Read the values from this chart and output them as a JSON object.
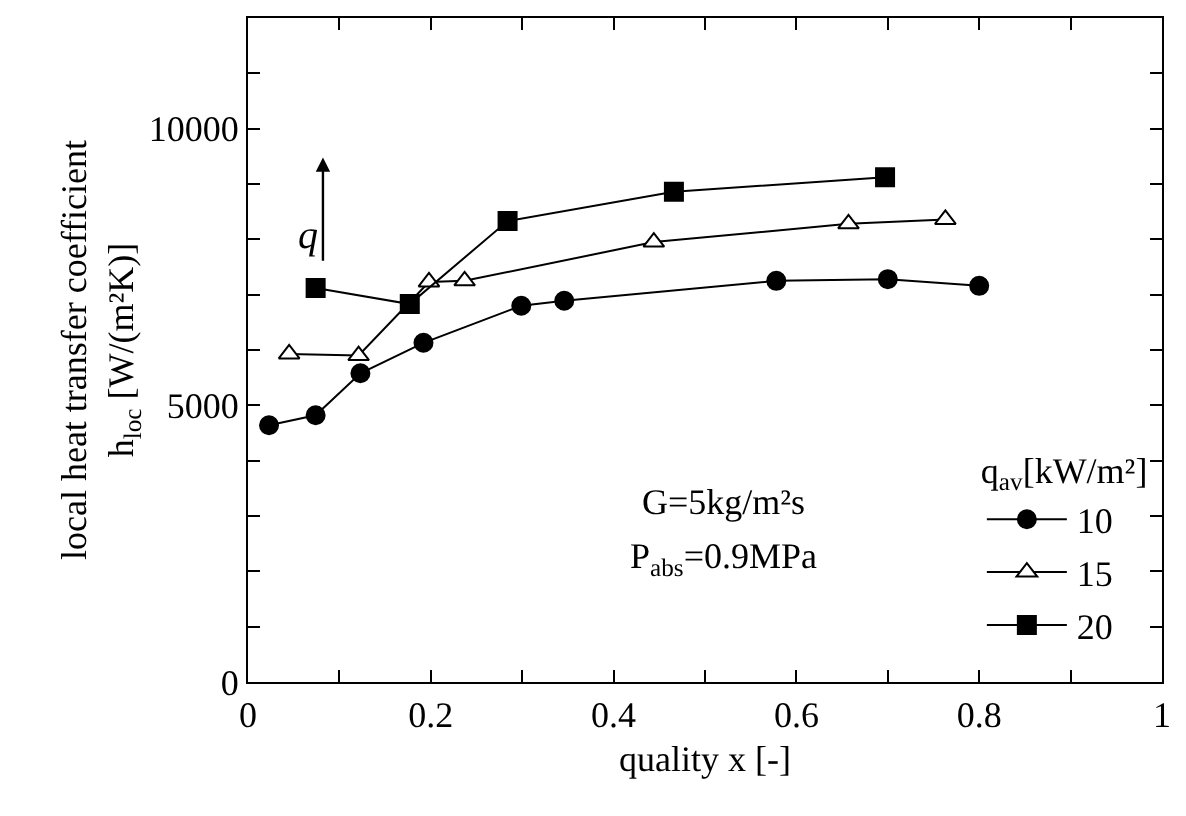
{
  "chart_data": {
    "type": "line",
    "xlabel": "quality x [-]",
    "ylabel": "local heat transfer coefficient\nh$_{loc}$ [W/(m²K)]",
    "legend_title": "q$_{av}$[kW/m²]",
    "xlim": [
      0,
      1
    ],
    "ylim": [
      0,
      12000
    ],
    "xticks": [
      0,
      {
        "value": 0.1,
        "label": null
      },
      0.2,
      {
        "value": 0.3,
        "label": null
      },
      0.4,
      {
        "value": 0.5,
        "label": null
      },
      0.6,
      {
        "value": 0.7,
        "label": null
      },
      0.8,
      {
        "value": 0.9,
        "label": null
      },
      1
    ],
    "yticks": [
      0,
      {
        "value": 1000,
        "label": null
      },
      {
        "value": 2000,
        "label": null
      },
      {
        "value": 3000,
        "label": null
      },
      {
        "value": 4000,
        "label": null
      },
      5000,
      {
        "value": 6000,
        "label": null
      },
      {
        "value": 7000,
        "label": null
      },
      {
        "value": 8000,
        "label": null
      },
      {
        "value": 9000,
        "label": null
      },
      10000,
      {
        "value": 11000,
        "label": null
      },
      {
        "value": 12000,
        "label": null
      }
    ],
    "grid": false,
    "legend": "bottom right",
    "line_style": "solid",
    "series": [
      {
        "name": "10",
        "color": "#000000",
        "marker": "circle",
        "x": [
          0.023,
          0.074,
          0.123,
          0.192,
          0.299,
          0.346,
          0.578,
          0.7,
          0.8
        ],
        "values": [
          4640,
          4820,
          5580,
          6130,
          6800,
          6890,
          7250,
          7280,
          7160
        ]
      },
      {
        "name": "15",
        "color": "#000000",
        "marker": "triangle",
        "x": [
          0.045,
          0.121,
          0.198,
          0.237,
          0.444,
          0.657,
          0.763
        ],
        "values": [
          5930,
          5900,
          7230,
          7250,
          7950,
          8280,
          8360
        ]
      },
      {
        "name": "20",
        "color": "#000000",
        "marker": "square",
        "x": [
          0.074,
          0.177,
          0.284,
          0.466,
          0.697
        ],
        "values": [
          7120,
          6830,
          8330,
          8860,
          9120
        ]
      }
    ],
    "annotations": [
      "q",
      "G=5kg/m²s",
      "P$_{abs}$=0.9MPa"
    ]
  }
}
